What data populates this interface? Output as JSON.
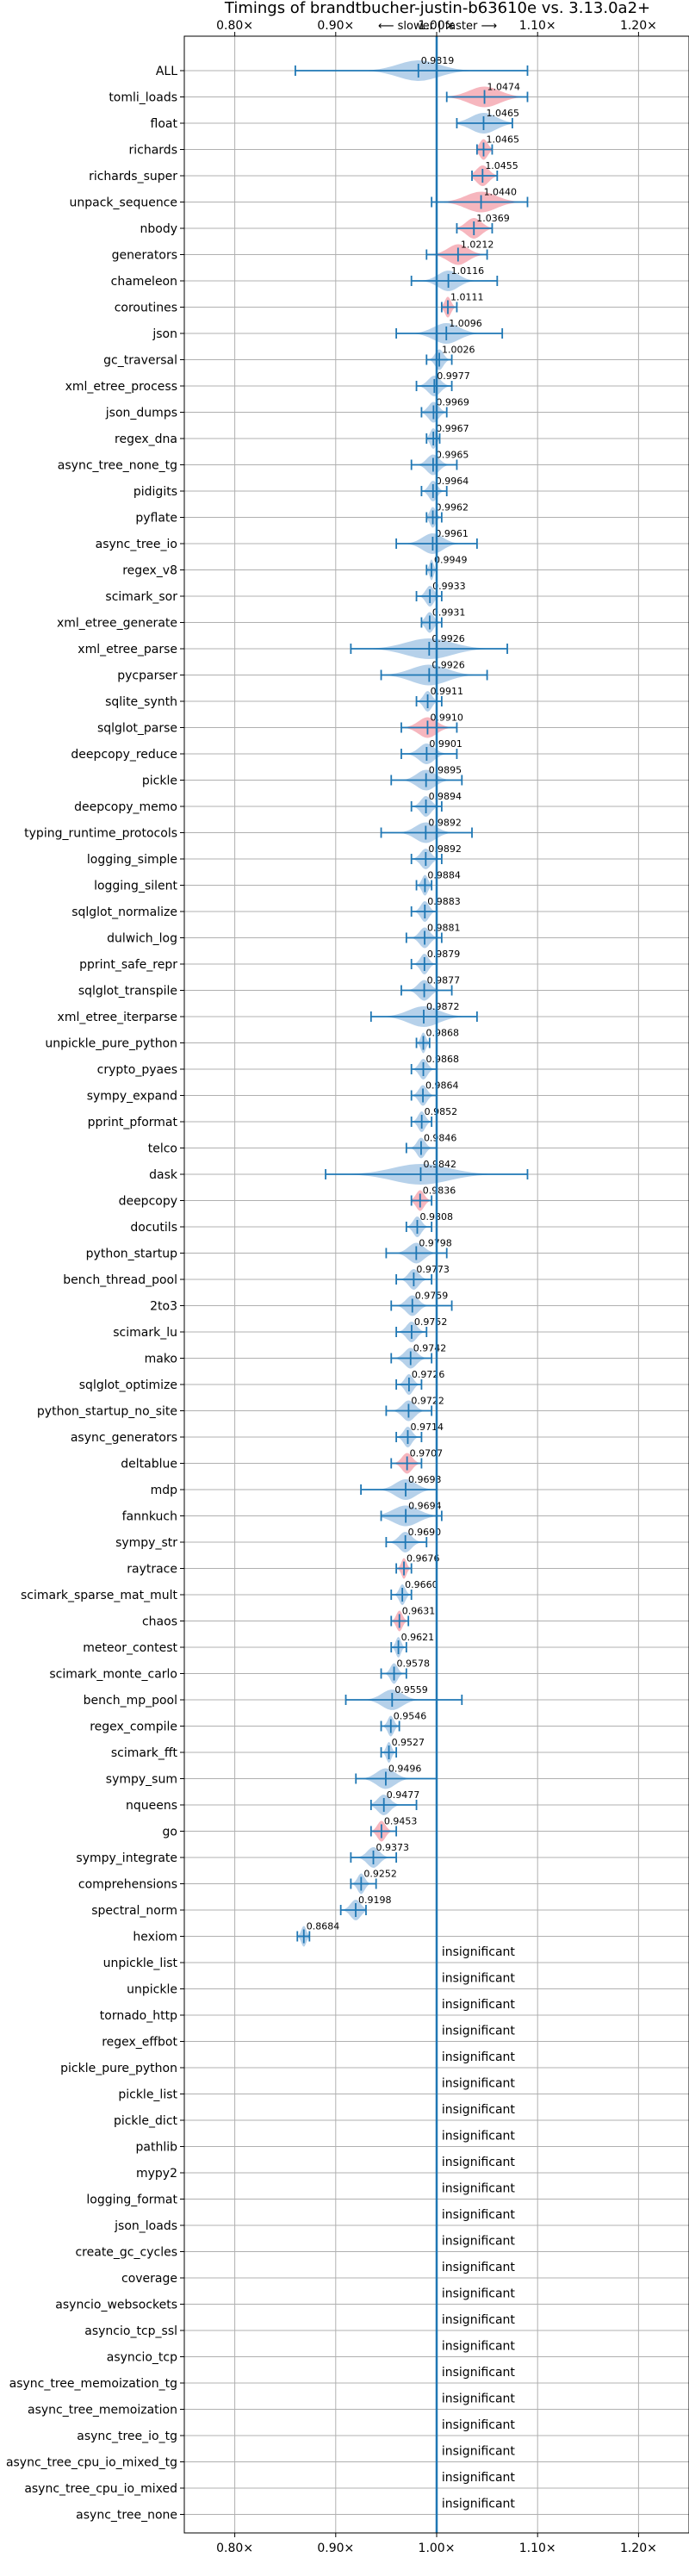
{
  "chart_data": {
    "type": "violin",
    "title": "Timings of brandtbucher-justin-b63610e vs. 3.13.0a2+",
    "subtitle": "⟵ slower | faster ⟶",
    "xlim": [
      0.75,
      1.25
    ],
    "xticks": [
      0.8,
      0.9,
      1.0,
      1.1,
      1.2
    ],
    "xtick_labels": [
      "0.80×",
      "0.90×",
      "1.00×",
      "1.10×",
      "1.20×"
    ],
    "reference_line": 1.0,
    "grid": true,
    "colors": {
      "normal": "#a9c9e6",
      "slower_fill": "#f4a9b3",
      "line": "#1f77b4",
      "grid": "#b0b0b0"
    },
    "insignificant_label": "insignificant",
    "benchmarks": [
      {
        "name": "ALL",
        "value": 0.9819,
        "min": 0.86,
        "max": 1.09,
        "spread": 0.04,
        "color": "blue"
      },
      {
        "name": "tomli_loads",
        "value": 1.0474,
        "min": 1.01,
        "max": 1.09,
        "spread": 0.03,
        "color": "red"
      },
      {
        "name": "float",
        "value": 1.0465,
        "min": 1.02,
        "max": 1.075,
        "spread": 0.025,
        "color": "blue"
      },
      {
        "name": "richards",
        "value": 1.0465,
        "min": 1.04,
        "max": 1.055,
        "spread": 0.008,
        "color": "red"
      },
      {
        "name": "richards_super",
        "value": 1.0455,
        "min": 1.035,
        "max": 1.06,
        "spread": 0.012,
        "color": "red"
      },
      {
        "name": "unpack_sequence",
        "value": 1.044,
        "min": 0.995,
        "max": 1.09,
        "spread": 0.03,
        "color": "red"
      },
      {
        "name": "nbody",
        "value": 1.0369,
        "min": 1.02,
        "max": 1.055,
        "spread": 0.015,
        "color": "red"
      },
      {
        "name": "generators",
        "value": 1.0212,
        "min": 0.99,
        "max": 1.05,
        "spread": 0.02,
        "color": "red"
      },
      {
        "name": "chameleon",
        "value": 1.0116,
        "min": 0.975,
        "max": 1.06,
        "spread": 0.02,
        "color": "blue"
      },
      {
        "name": "coroutines",
        "value": 1.0111,
        "min": 1.005,
        "max": 1.02,
        "spread": 0.006,
        "color": "red"
      },
      {
        "name": "json",
        "value": 1.0096,
        "min": 0.96,
        "max": 1.065,
        "spread": 0.025,
        "color": "blue"
      },
      {
        "name": "gc_traversal",
        "value": 1.0026,
        "min": 0.99,
        "max": 1.015,
        "spread": 0.008,
        "color": "blue"
      },
      {
        "name": "xml_etree_process",
        "value": 0.9977,
        "min": 0.98,
        "max": 1.015,
        "spread": 0.012,
        "color": "blue"
      },
      {
        "name": "json_dumps",
        "value": 0.9969,
        "min": 0.985,
        "max": 1.01,
        "spread": 0.01,
        "color": "blue"
      },
      {
        "name": "regex_dna",
        "value": 0.9967,
        "min": 0.99,
        "max": 1.003,
        "spread": 0.006,
        "color": "blue"
      },
      {
        "name": "async_tree_none_tg",
        "value": 0.9965,
        "min": 0.975,
        "max": 1.02,
        "spread": 0.012,
        "color": "blue"
      },
      {
        "name": "pidigits",
        "value": 0.9964,
        "min": 0.985,
        "max": 1.01,
        "spread": 0.008,
        "color": "blue"
      },
      {
        "name": "pyflate",
        "value": 0.9962,
        "min": 0.99,
        "max": 1.005,
        "spread": 0.006,
        "color": "blue"
      },
      {
        "name": "async_tree_io",
        "value": 0.9961,
        "min": 0.96,
        "max": 1.04,
        "spread": 0.02,
        "color": "blue"
      },
      {
        "name": "regex_v8",
        "value": 0.9949,
        "min": 0.99,
        "max": 1.0,
        "spread": 0.004,
        "color": "blue"
      },
      {
        "name": "scimark_sor",
        "value": 0.9933,
        "min": 0.98,
        "max": 1.005,
        "spread": 0.008,
        "color": "blue"
      },
      {
        "name": "xml_etree_generate",
        "value": 0.9931,
        "min": 0.985,
        "max": 1.005,
        "spread": 0.008,
        "color": "blue"
      },
      {
        "name": "xml_etree_parse",
        "value": 0.9926,
        "min": 0.915,
        "max": 1.07,
        "spread": 0.045,
        "color": "blue"
      },
      {
        "name": "pycparser",
        "value": 0.9926,
        "min": 0.945,
        "max": 1.05,
        "spread": 0.035,
        "color": "blue"
      },
      {
        "name": "sqlite_synth",
        "value": 0.9911,
        "min": 0.98,
        "max": 1.005,
        "spread": 0.008,
        "color": "blue"
      },
      {
        "name": "sqlglot_parse",
        "value": 0.991,
        "min": 0.965,
        "max": 1.02,
        "spread": 0.018,
        "color": "red"
      },
      {
        "name": "deepcopy_reduce",
        "value": 0.9901,
        "min": 0.965,
        "max": 1.02,
        "spread": 0.015,
        "color": "blue"
      },
      {
        "name": "pickle",
        "value": 0.9895,
        "min": 0.955,
        "max": 1.025,
        "spread": 0.018,
        "color": "blue"
      },
      {
        "name": "deepcopy_memo",
        "value": 0.9894,
        "min": 0.975,
        "max": 1.005,
        "spread": 0.01,
        "color": "blue"
      },
      {
        "name": "typing_runtime_protocols",
        "value": 0.9892,
        "min": 0.945,
        "max": 1.035,
        "spread": 0.02,
        "color": "blue"
      },
      {
        "name": "logging_simple",
        "value": 0.9892,
        "min": 0.975,
        "max": 1.005,
        "spread": 0.01,
        "color": "blue"
      },
      {
        "name": "logging_silent",
        "value": 0.9884,
        "min": 0.98,
        "max": 0.995,
        "spread": 0.006,
        "color": "blue"
      },
      {
        "name": "sqlglot_normalize",
        "value": 0.9883,
        "min": 0.975,
        "max": 1.0,
        "spread": 0.008,
        "color": "blue"
      },
      {
        "name": "dulwich_log",
        "value": 0.9881,
        "min": 0.97,
        "max": 1.005,
        "spread": 0.01,
        "color": "blue"
      },
      {
        "name": "pprint_safe_repr",
        "value": 0.9879,
        "min": 0.975,
        "max": 1.0,
        "spread": 0.008,
        "color": "blue"
      },
      {
        "name": "sqlglot_transpile",
        "value": 0.9877,
        "min": 0.965,
        "max": 1.015,
        "spread": 0.012,
        "color": "blue"
      },
      {
        "name": "xml_etree_iterparse",
        "value": 0.9872,
        "min": 0.935,
        "max": 1.04,
        "spread": 0.03,
        "color": "blue"
      },
      {
        "name": "unpickle_pure_python",
        "value": 0.9868,
        "min": 0.98,
        "max": 0.993,
        "spread": 0.005,
        "color": "blue"
      },
      {
        "name": "crypto_pyaes",
        "value": 0.9868,
        "min": 0.975,
        "max": 1.0,
        "spread": 0.008,
        "color": "blue"
      },
      {
        "name": "sympy_expand",
        "value": 0.9864,
        "min": 0.975,
        "max": 1.0,
        "spread": 0.008,
        "color": "blue"
      },
      {
        "name": "pprint_pformat",
        "value": 0.9852,
        "min": 0.975,
        "max": 0.995,
        "spread": 0.007,
        "color": "blue"
      },
      {
        "name": "telco",
        "value": 0.9846,
        "min": 0.97,
        "max": 1.0,
        "spread": 0.008,
        "color": "blue"
      },
      {
        "name": "dask",
        "value": 0.9842,
        "min": 0.89,
        "max": 1.09,
        "spread": 0.055,
        "color": "blue"
      },
      {
        "name": "deepcopy",
        "value": 0.9836,
        "min": 0.975,
        "max": 0.995,
        "spread": 0.008,
        "color": "red"
      },
      {
        "name": "docutils",
        "value": 0.9808,
        "min": 0.97,
        "max": 0.995,
        "spread": 0.008,
        "color": "blue"
      },
      {
        "name": "python_startup",
        "value": 0.9798,
        "min": 0.95,
        "max": 1.01,
        "spread": 0.015,
        "color": "blue"
      },
      {
        "name": "bench_thread_pool",
        "value": 0.9773,
        "min": 0.96,
        "max": 0.995,
        "spread": 0.01,
        "color": "blue"
      },
      {
        "name": "2to3",
        "value": 0.9759,
        "min": 0.955,
        "max": 1.015,
        "spread": 0.012,
        "color": "blue"
      },
      {
        "name": "scimark_lu",
        "value": 0.9752,
        "min": 0.96,
        "max": 0.99,
        "spread": 0.01,
        "color": "blue"
      },
      {
        "name": "mako",
        "value": 0.9742,
        "min": 0.955,
        "max": 0.995,
        "spread": 0.012,
        "color": "blue"
      },
      {
        "name": "sqlglot_optimize",
        "value": 0.9726,
        "min": 0.96,
        "max": 0.985,
        "spread": 0.008,
        "color": "blue"
      },
      {
        "name": "python_startup_no_site",
        "value": 0.9722,
        "min": 0.95,
        "max": 0.995,
        "spread": 0.012,
        "color": "blue"
      },
      {
        "name": "async_generators",
        "value": 0.9714,
        "min": 0.96,
        "max": 0.985,
        "spread": 0.008,
        "color": "blue"
      },
      {
        "name": "deltablue",
        "value": 0.9707,
        "min": 0.955,
        "max": 0.985,
        "spread": 0.01,
        "color": "red"
      },
      {
        "name": "mdp",
        "value": 0.9693,
        "min": 0.925,
        "max": 1.0,
        "spread": 0.02,
        "color": "blue"
      },
      {
        "name": "fannkuch",
        "value": 0.9694,
        "min": 0.945,
        "max": 1.005,
        "spread": 0.025,
        "color": "blue"
      },
      {
        "name": "sympy_str",
        "value": 0.969,
        "min": 0.95,
        "max": 0.99,
        "spread": 0.012,
        "color": "blue"
      },
      {
        "name": "raytrace",
        "value": 0.9676,
        "min": 0.96,
        "max": 0.975,
        "spread": 0.005,
        "color": "red"
      },
      {
        "name": "scimark_sparse_mat_mult",
        "value": 0.966,
        "min": 0.955,
        "max": 0.975,
        "spread": 0.006,
        "color": "blue"
      },
      {
        "name": "chaos",
        "value": 0.9631,
        "min": 0.955,
        "max": 0.972,
        "spread": 0.006,
        "color": "red"
      },
      {
        "name": "meteor_contest",
        "value": 0.9621,
        "min": 0.955,
        "max": 0.97,
        "spread": 0.005,
        "color": "blue"
      },
      {
        "name": "scimark_monte_carlo",
        "value": 0.9578,
        "min": 0.945,
        "max": 0.97,
        "spread": 0.007,
        "color": "blue"
      },
      {
        "name": "bench_mp_pool",
        "value": 0.9559,
        "min": 0.91,
        "max": 1.025,
        "spread": 0.02,
        "color": "blue"
      },
      {
        "name": "regex_compile",
        "value": 0.9546,
        "min": 0.945,
        "max": 0.963,
        "spread": 0.006,
        "color": "blue"
      },
      {
        "name": "scimark_fft",
        "value": 0.9527,
        "min": 0.945,
        "max": 0.96,
        "spread": 0.005,
        "color": "blue"
      },
      {
        "name": "sympy_sum",
        "value": 0.9496,
        "min": 0.92,
        "max": 1.0,
        "spread": 0.018,
        "color": "blue"
      },
      {
        "name": "nqueens",
        "value": 0.9477,
        "min": 0.935,
        "max": 0.98,
        "spread": 0.012,
        "color": "blue"
      },
      {
        "name": "go",
        "value": 0.9453,
        "min": 0.935,
        "max": 0.96,
        "spread": 0.008,
        "color": "red"
      },
      {
        "name": "sympy_integrate",
        "value": 0.9373,
        "min": 0.915,
        "max": 0.96,
        "spread": 0.012,
        "color": "blue"
      },
      {
        "name": "comprehensions",
        "value": 0.9252,
        "min": 0.915,
        "max": 0.94,
        "spread": 0.007,
        "color": "blue"
      },
      {
        "name": "spectral_norm",
        "value": 0.9198,
        "min": 0.905,
        "max": 0.93,
        "spread": 0.01,
        "color": "blue"
      },
      {
        "name": "hexiom",
        "value": 0.8684,
        "min": 0.862,
        "max": 0.874,
        "spread": 0.005,
        "color": "blue"
      }
    ],
    "insignificant": [
      "unpickle_list",
      "unpickle",
      "tornado_http",
      "regex_effbot",
      "pickle_pure_python",
      "pickle_list",
      "pickle_dict",
      "pathlib",
      "mypy2",
      "logging_format",
      "json_loads",
      "create_gc_cycles",
      "coverage",
      "asyncio_websockets",
      "asyncio_tcp_ssl",
      "asyncio_tcp",
      "async_tree_memoization_tg",
      "async_tree_memoization",
      "async_tree_io_tg",
      "async_tree_cpu_io_mixed_tg",
      "async_tree_cpu_io_mixed",
      "async_tree_none"
    ]
  }
}
